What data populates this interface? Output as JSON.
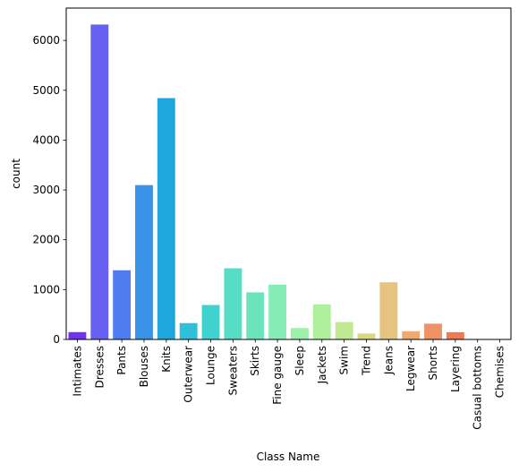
{
  "chart_data": {
    "type": "bar",
    "title": "",
    "xlabel": "Class Name",
    "ylabel": "count",
    "ylim": [
      0,
      6650
    ],
    "yticks": [
      0,
      1000,
      2000,
      3000,
      4000,
      5000,
      6000
    ],
    "grid": false,
    "categories": [
      "Intimates",
      "Dresses",
      "Pants",
      "Blouses",
      "Knits",
      "Outerwear",
      "Lounge",
      "Sweaters",
      "Skirts",
      "Fine gauge",
      "Sleep",
      "Jackets",
      "Swim",
      "Trend",
      "Jeans",
      "Legwear",
      "Shorts",
      "Layering",
      "Casual bottoms",
      "Chemises"
    ],
    "values": [
      147,
      6319,
      1388,
      3097,
      4843,
      328,
      691,
      1428,
      945,
      1100,
      228,
      704,
      350,
      119,
      1147,
      165,
      317,
      146,
      2,
      1
    ],
    "colors": [
      "#7034f0",
      "#6760f0",
      "#4f7df0",
      "#3a92e6",
      "#1ea7dc",
      "#2ec0d8",
      "#3fd2cf",
      "#56dcc4",
      "#6be4bc",
      "#84ecb4",
      "#9cf0a9",
      "#aef09c",
      "#c1e892",
      "#d8d885",
      "#e4c47e",
      "#eeaa70",
      "#f09263",
      "#f07853",
      "#f05c40",
      "#f03a26"
    ]
  }
}
